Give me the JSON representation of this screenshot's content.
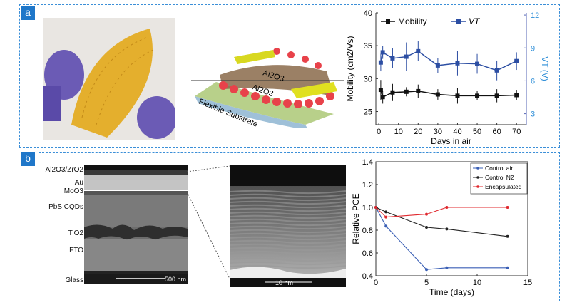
{
  "panels": {
    "a": "a",
    "b": "b"
  },
  "schematic": {
    "layer_top": "Al2O3",
    "layer_bottom": "Al2O3",
    "substrate": "Flexible Substrate"
  },
  "tem": {
    "layers": [
      "Al2O3/ZrO2",
      "Au",
      "MoO3",
      "PbS  CQDs",
      "TiO2",
      "FTO",
      "Glass"
    ],
    "scale_left": "500 nm",
    "scale_right": "10 nm"
  },
  "colors": {
    "panel_border": "#3b8fd8",
    "label_bg": "#1f77c9",
    "mobility": "#111111",
    "vt": "#2c4ea3",
    "right_axis": "#2f8fd8",
    "control_air": "#3a5fb5",
    "control_n2": "#222222",
    "encapsulated": "#e0282e"
  },
  "chart_data": [
    {
      "type": "line",
      "xlabel": "Days in air",
      "ylabel": "Mobility (cm2/Vs)",
      "ylabel_right": "VT (V)",
      "xlim": [
        -1.5,
        75
      ],
      "ylim": [
        23,
        40
      ],
      "ylim_right": [
        2,
        12.2
      ],
      "xticks": [
        0,
        10,
        20,
        30,
        40,
        50,
        60,
        70
      ],
      "yticks": [
        25,
        30,
        35,
        40
      ],
      "yticks_right": [
        3,
        6,
        9,
        12
      ],
      "legend_position": "top",
      "x": [
        1,
        2,
        7,
        14,
        20,
        30,
        40,
        50,
        60,
        70
      ],
      "series": [
        {
          "name": "Mobility",
          "axis": "left",
          "values": [
            28.3,
            27.2,
            27.9,
            28.0,
            28.1,
            27.6,
            27.4,
            27.4,
            27.4,
            27.5
          ],
          "errors": [
            1.5,
            1.0,
            1.3,
            0.7,
            1.0,
            0.8,
            1.2,
            0.7,
            1.0,
            0.8
          ]
        },
        {
          "name": "VT",
          "axis": "right",
          "values": [
            7.67,
            8.6,
            8.05,
            8.2,
            8.7,
            7.4,
            7.6,
            7.55,
            6.95,
            7.8
          ],
          "errors": [
            0.8,
            0.6,
            0.9,
            1.3,
            0.9,
            0.7,
            1.1,
            0.9,
            0.9,
            0.8
          ]
        }
      ]
    },
    {
      "type": "line",
      "xlabel": "Time (days)",
      "ylabel": "Relative PCE",
      "xlim": [
        0,
        15
      ],
      "ylim": [
        0.4,
        1.4
      ],
      "xticks": [
        0,
        5,
        10,
        15
      ],
      "yticks": [
        0.4,
        0.6,
        0.8,
        1.0,
        1.2,
        1.4
      ],
      "ytick_labels": [
        "0.4",
        "0.6",
        "0.8",
        "1.0",
        "1.2",
        "1.4"
      ],
      "legend_position": "top-right",
      "x": [
        0,
        1,
        5,
        7,
        13
      ],
      "series": [
        {
          "name": "Control air",
          "values": [
            1.0,
            0.835,
            0.455,
            0.47,
            0.47
          ]
        },
        {
          "name": "Control N2",
          "values": [
            1.0,
            0.96,
            0.825,
            0.81,
            0.745
          ]
        },
        {
          "name": "Encapsulated",
          "values": [
            1.0,
            0.915,
            0.94,
            1.0,
            1.0
          ]
        }
      ]
    }
  ]
}
